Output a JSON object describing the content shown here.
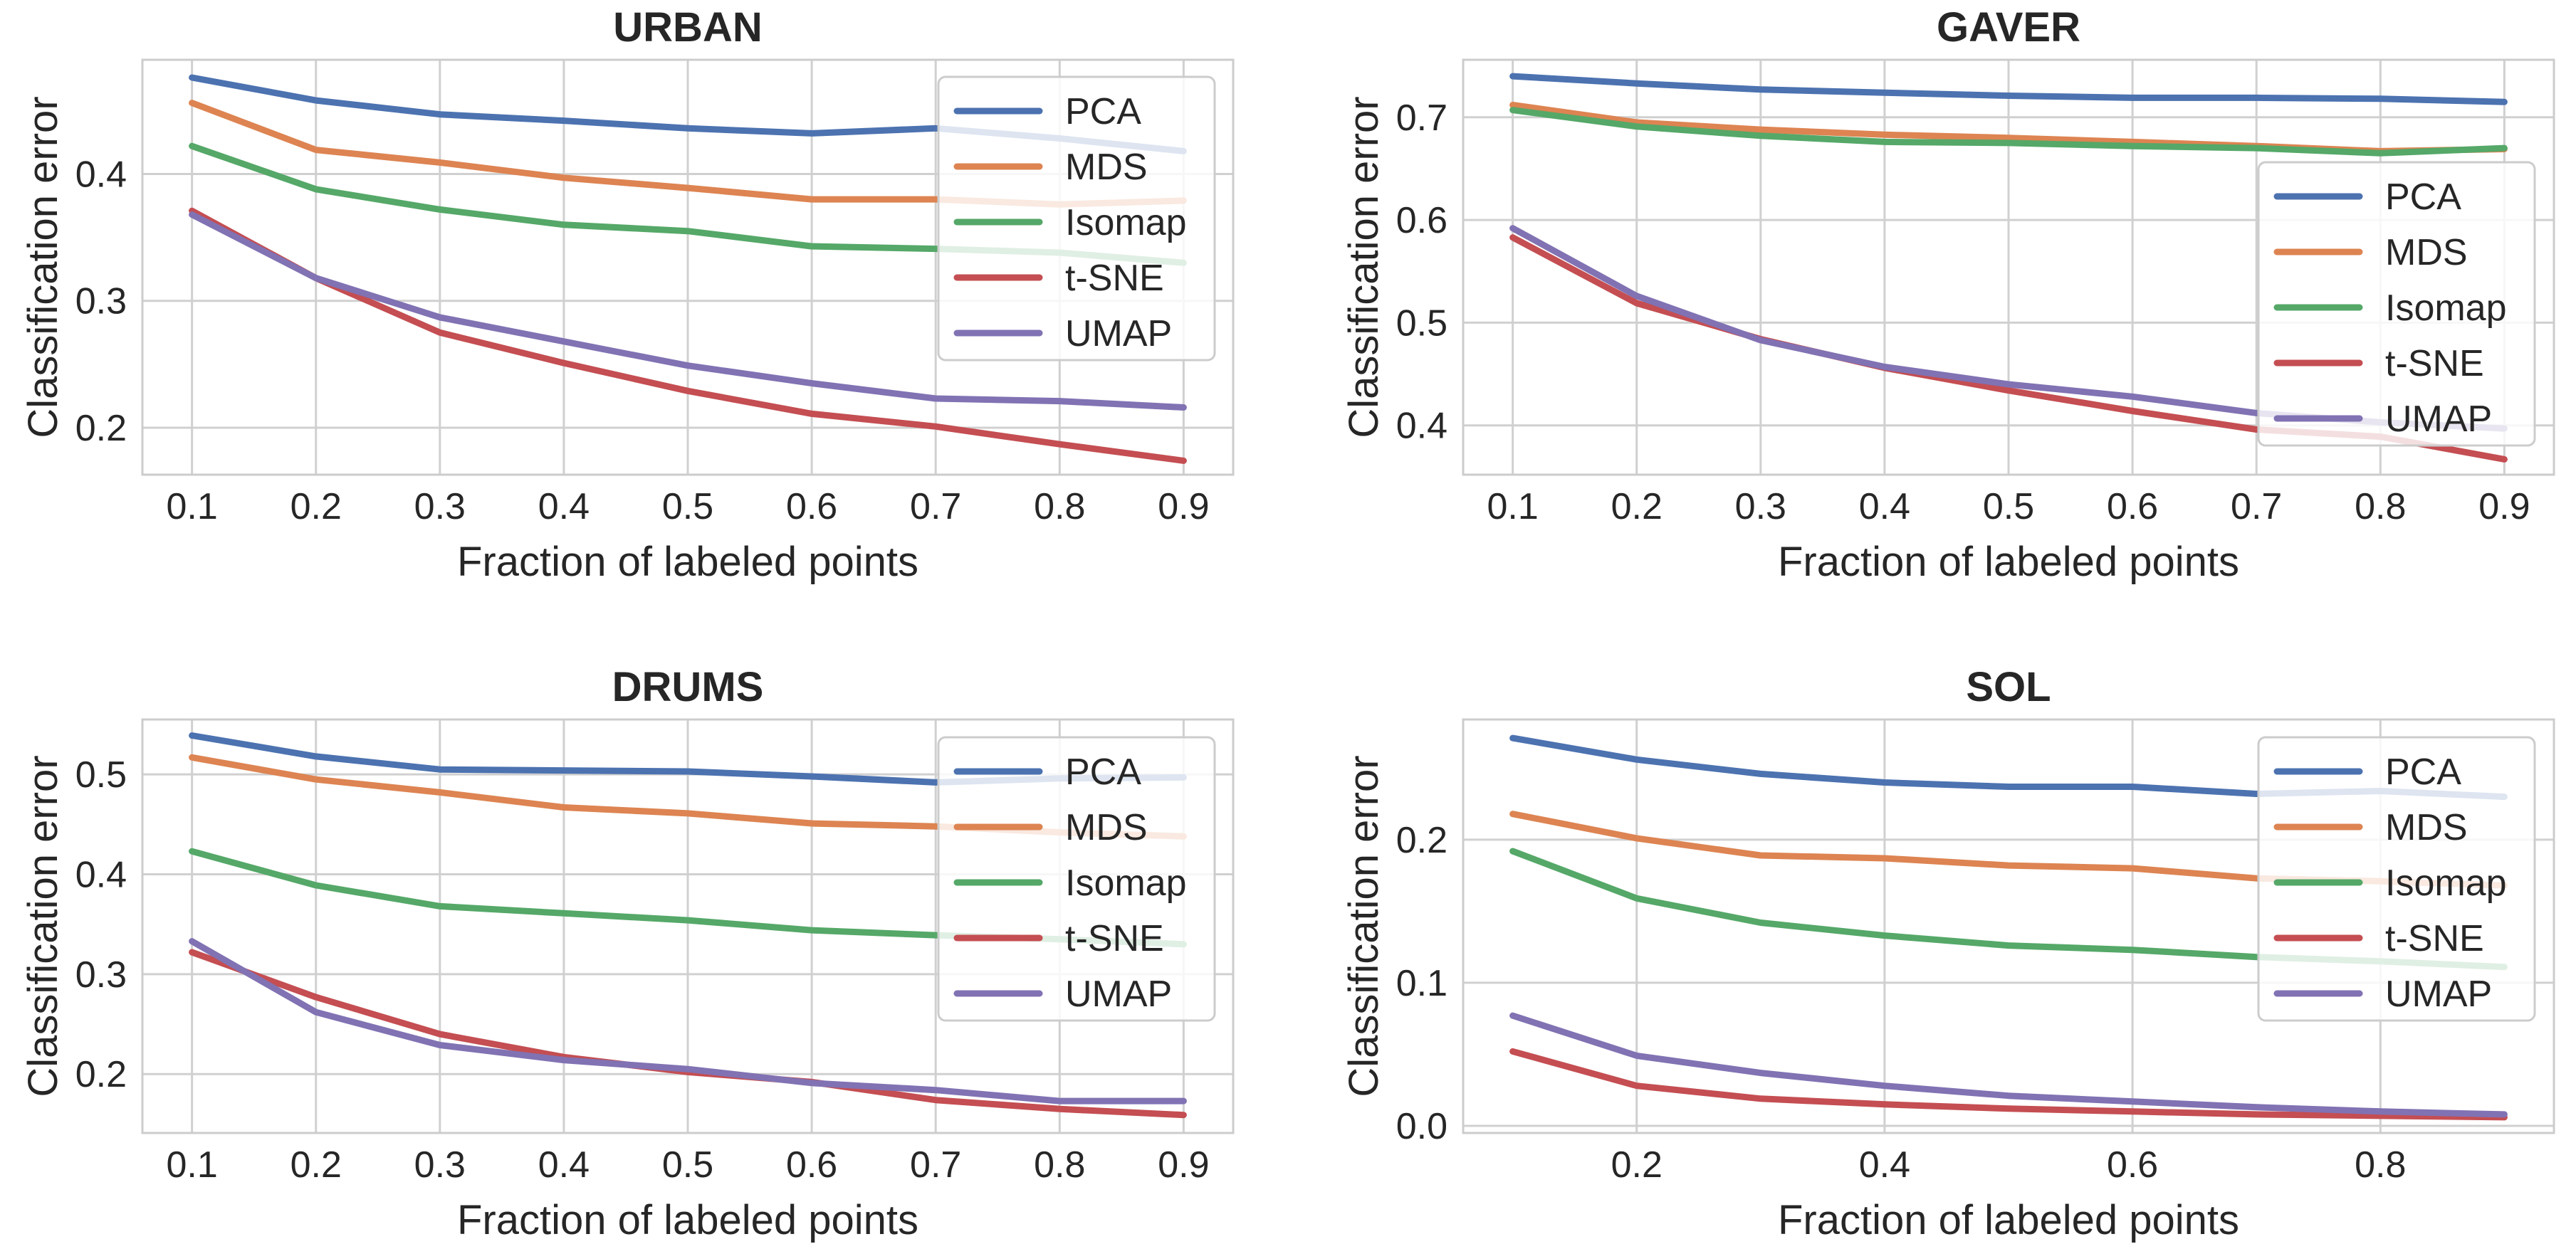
{
  "figure": {
    "colors": {
      "PCA": "#4c72b0",
      "MDS": "#dd8452",
      "Isomap": "#55a868",
      "t-SNE": "#c44e52",
      "UMAP": "#8172b3"
    }
  },
  "chart_data": [
    {
      "type": "line",
      "title": "URBAN",
      "xlabel": "Fraction of labeled points",
      "ylabel": "Classification error",
      "x": [
        0.1,
        0.2,
        0.3,
        0.4,
        0.5,
        0.6,
        0.7,
        0.8,
        0.9
      ],
      "xlim": [
        0.06,
        0.94
      ],
      "ylim": [
        0.163,
        0.49
      ],
      "xticks": [
        0.1,
        0.2,
        0.3,
        0.4,
        0.5,
        0.6,
        0.7,
        0.8,
        0.9
      ],
      "xtick_labels": [
        "0.1",
        "0.2",
        "0.3",
        "0.4",
        "0.5",
        "0.6",
        "0.7",
        "0.8",
        "0.9"
      ],
      "yticks": [
        0.2,
        0.3,
        0.4
      ],
      "ytick_labels": [
        "0.2",
        "0.3",
        "0.4"
      ],
      "legend_position": "top-right",
      "series": [
        {
          "name": "PCA",
          "values": [
            0.476,
            0.458,
            0.447,
            0.442,
            0.436,
            0.432,
            0.436,
            0.428,
            0.418
          ]
        },
        {
          "name": "MDS",
          "values": [
            0.456,
            0.419,
            0.409,
            0.397,
            0.389,
            0.38,
            0.38,
            0.376,
            0.379
          ]
        },
        {
          "name": "Isomap",
          "values": [
            0.422,
            0.388,
            0.372,
            0.36,
            0.355,
            0.343,
            0.341,
            0.338,
            0.33
          ]
        },
        {
          "name": "t-SNE",
          "values": [
            0.371,
            0.318,
            0.275,
            0.251,
            0.229,
            0.211,
            0.201,
            0.187,
            0.174
          ]
        },
        {
          "name": "UMAP",
          "values": [
            0.368,
            0.318,
            0.287,
            0.268,
            0.249,
            0.235,
            0.223,
            0.221,
            0.216
          ]
        }
      ]
    },
    {
      "type": "line",
      "title": "GAVER",
      "xlabel": "Fraction of labeled points",
      "ylabel": "Classification error",
      "x": [
        0.1,
        0.2,
        0.3,
        0.4,
        0.5,
        0.6,
        0.7,
        0.8,
        0.9
      ],
      "xlim": [
        0.06,
        0.94
      ],
      "ylim": [
        0.352,
        0.756
      ],
      "xticks": [
        0.1,
        0.2,
        0.3,
        0.4,
        0.5,
        0.6,
        0.7,
        0.8,
        0.9
      ],
      "xtick_labels": [
        "0.1",
        "0.2",
        "0.3",
        "0.4",
        "0.5",
        "0.6",
        "0.7",
        "0.8",
        "0.9"
      ],
      "yticks": [
        0.4,
        0.5,
        0.6,
        0.7
      ],
      "ytick_labels": [
        "0.4",
        "0.5",
        "0.6",
        "0.7"
      ],
      "legend_position": "lower-right",
      "series": [
        {
          "name": "PCA",
          "values": [
            0.74,
            0.733,
            0.727,
            0.724,
            0.721,
            0.719,
            0.719,
            0.718,
            0.715
          ]
        },
        {
          "name": "MDS",
          "values": [
            0.712,
            0.695,
            0.688,
            0.683,
            0.68,
            0.676,
            0.672,
            0.667,
            0.669
          ]
        },
        {
          "name": "Isomap",
          "values": [
            0.707,
            0.691,
            0.682,
            0.676,
            0.675,
            0.672,
            0.67,
            0.665,
            0.67
          ]
        },
        {
          "name": "t-SNE",
          "values": [
            0.583,
            0.519,
            0.484,
            0.456,
            0.434,
            0.414,
            0.396,
            0.389,
            0.367
          ]
        },
        {
          "name": "UMAP",
          "values": [
            0.592,
            0.526,
            0.483,
            0.457,
            0.44,
            0.428,
            0.412,
            0.403,
            0.397
          ]
        }
      ]
    },
    {
      "type": "line",
      "title": "DRUMS",
      "xlabel": "Fraction of labeled points",
      "ylabel": "Classification error",
      "x": [
        0.1,
        0.2,
        0.3,
        0.4,
        0.5,
        0.6,
        0.7,
        0.8,
        0.9
      ],
      "xlim": [
        0.06,
        0.94
      ],
      "ylim": [
        0.141,
        0.555
      ],
      "xticks": [
        0.1,
        0.2,
        0.3,
        0.4,
        0.5,
        0.6,
        0.7,
        0.8,
        0.9
      ],
      "xtick_labels": [
        "0.1",
        "0.2",
        "0.3",
        "0.4",
        "0.5",
        "0.6",
        "0.7",
        "0.8",
        "0.9"
      ],
      "yticks": [
        0.2,
        0.3,
        0.4,
        0.5
      ],
      "ytick_labels": [
        "0.2",
        "0.3",
        "0.4",
        "0.5"
      ],
      "legend_position": "top-right",
      "series": [
        {
          "name": "PCA",
          "values": [
            0.539,
            0.518,
            0.505,
            0.504,
            0.503,
            0.498,
            0.492,
            0.496,
            0.497
          ]
        },
        {
          "name": "MDS",
          "values": [
            0.517,
            0.495,
            0.482,
            0.467,
            0.461,
            0.451,
            0.448,
            0.442,
            0.438
          ]
        },
        {
          "name": "Isomap",
          "values": [
            0.423,
            0.389,
            0.368,
            0.361,
            0.354,
            0.344,
            0.339,
            0.335,
            0.33
          ]
        },
        {
          "name": "t-SNE",
          "values": [
            0.322,
            0.277,
            0.24,
            0.217,
            0.202,
            0.192,
            0.174,
            0.165,
            0.159
          ]
        },
        {
          "name": "UMAP",
          "values": [
            0.333,
            0.262,
            0.229,
            0.214,
            0.205,
            0.191,
            0.184,
            0.173,
            0.173
          ]
        }
      ]
    },
    {
      "type": "line",
      "title": "SOL",
      "xlabel": "Fraction of labeled points",
      "ylabel": "Classification error",
      "x": [
        0.1,
        0.2,
        0.3,
        0.4,
        0.5,
        0.6,
        0.7,
        0.8,
        0.9
      ],
      "xlim": [
        0.06,
        0.94
      ],
      "ylim": [
        -0.005,
        0.284
      ],
      "xticks": [
        0.2,
        0.4,
        0.6,
        0.8
      ],
      "xtick_labels": [
        "0.2",
        "0.4",
        "0.6",
        "0.8"
      ],
      "yticks": [
        0.0,
        0.1,
        0.2
      ],
      "ytick_labels": [
        "0.0",
        "0.1",
        "0.2"
      ],
      "legend_position": "top-right",
      "series": [
        {
          "name": "PCA",
          "values": [
            0.271,
            0.256,
            0.246,
            0.24,
            0.237,
            0.237,
            0.232,
            0.234,
            0.23
          ]
        },
        {
          "name": "MDS",
          "values": [
            0.218,
            0.201,
            0.189,
            0.187,
            0.182,
            0.18,
            0.173,
            0.171,
            0.168
          ]
        },
        {
          "name": "Isomap",
          "values": [
            0.192,
            0.159,
            0.142,
            0.133,
            0.126,
            0.123,
            0.118,
            0.115,
            0.111
          ]
        },
        {
          "name": "t-SNE",
          "values": [
            0.052,
            0.028,
            0.019,
            0.015,
            0.012,
            0.01,
            0.008,
            0.007,
            0.006
          ]
        },
        {
          "name": "UMAP",
          "values": [
            0.077,
            0.049,
            0.037,
            0.028,
            0.021,
            0.017,
            0.013,
            0.01,
            0.008
          ]
        }
      ]
    }
  ]
}
